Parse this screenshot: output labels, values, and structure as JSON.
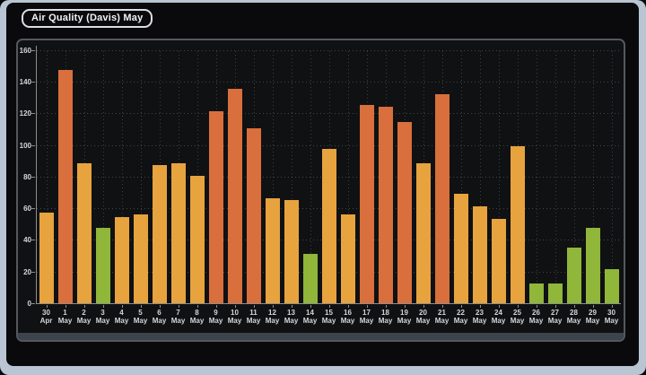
{
  "window": {
    "title_badge": "Air Quality (Davis) May"
  },
  "theme": {
    "frame_color": "#b9c5d3",
    "window_bg": "#0a0a0c",
    "panel_bg": "#101113",
    "panel_border": "#54585c",
    "panel_footer": "#3e444b",
    "axis_color": "#8b8e91",
    "tick_label_color": "#d3d6d8",
    "badge_border": "#dadee2",
    "badge_text": "#f0f2f4",
    "aqi_thresholds": [
      {
        "category": "good",
        "max": 50,
        "color": "#90b63a"
      },
      {
        "category": "moderate",
        "max": 100,
        "color": "#e7a33e"
      },
      {
        "category": "unhealthy-for-sensitive-groups",
        "max": 500,
        "color": "#d96f3c"
      }
    ]
  },
  "chart_data": {
    "type": "bar",
    "title": "Air Quality (Davis) May",
    "xlabel": "",
    "ylabel": "",
    "ylim": [
      0,
      160
    ],
    "y_ticks": [
      0,
      20,
      40,
      60,
      80,
      100,
      120,
      140,
      160
    ],
    "grid": "dotted",
    "legend": false,
    "x": [
      "30 Apr",
      "1 May",
      "2 May",
      "3 May",
      "4 May",
      "5 May",
      "6 May",
      "7 May",
      "8 May",
      "9 May",
      "10 May",
      "11 May",
      "12 May",
      "13 May",
      "14 May",
      "15 May",
      "16 May",
      "17 May",
      "18 May",
      "19 May",
      "20 May",
      "21 May",
      "22 May",
      "23 May",
      "24 May",
      "25 May",
      "26 May",
      "27 May",
      "28 May",
      "29 May",
      "30 May"
    ],
    "values": [
      58,
      148,
      89,
      48,
      55,
      57,
      88,
      89,
      81,
      122,
      136,
      111,
      67,
      66,
      32,
      98,
      57,
      126,
      125,
      115,
      89,
      133,
      70,
      62,
      54,
      100,
      13,
      13,
      36,
      48,
      22
    ]
  }
}
